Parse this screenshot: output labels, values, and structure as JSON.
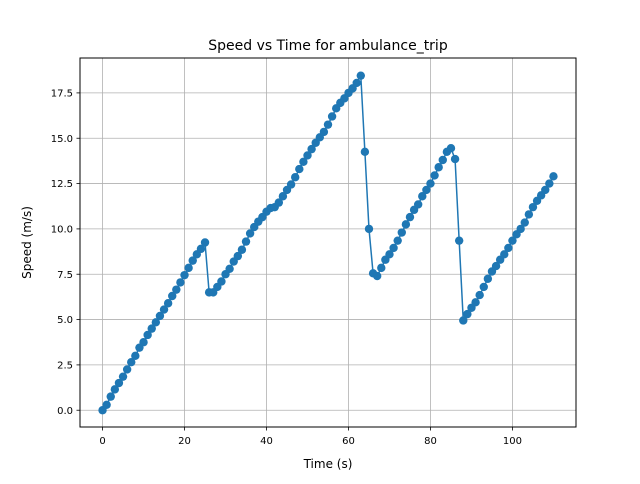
{
  "chart_data": {
    "type": "line",
    "title": "Speed vs Time for ambulance_trip",
    "xlabel": "Time (s)",
    "ylabel": "Speed (m/s)",
    "xlim": [
      -5.5,
      115.5
    ],
    "ylim": [
      -0.925,
      19.425
    ],
    "xticks": [
      0,
      20,
      40,
      60,
      80,
      100
    ],
    "xtick_labels": [
      "0",
      "20",
      "40",
      "60",
      "80",
      "100"
    ],
    "yticks": [
      0,
      2.5,
      5,
      7.5,
      10,
      12.5,
      15,
      17.5
    ],
    "ytick_labels": [
      "0.0",
      "2.5",
      "5.0",
      "7.5",
      "10.0",
      "12.5",
      "15.0",
      "17.5"
    ],
    "grid": true,
    "marker": "circle",
    "color": "#1f77b4",
    "x": [
      0,
      1,
      2,
      3,
      4,
      5,
      6,
      7,
      8,
      9,
      10,
      11,
      12,
      13,
      14,
      15,
      16,
      17,
      18,
      19,
      20,
      21,
      22,
      23,
      24,
      25,
      26,
      27,
      28,
      29,
      30,
      31,
      32,
      33,
      34,
      35,
      36,
      37,
      38,
      39,
      40,
      41,
      42,
      43,
      44,
      45,
      46,
      47,
      48,
      49,
      50,
      51,
      52,
      53,
      54,
      55,
      56,
      57,
      58,
      59,
      60,
      61,
      62,
      63,
      64,
      65,
      66,
      67,
      68,
      69,
      70,
      71,
      72,
      73,
      74,
      75,
      76,
      77,
      78,
      79,
      80,
      81,
      82,
      83,
      84,
      85,
      86,
      87,
      88,
      89,
      90,
      91,
      92,
      93,
      94,
      95,
      96,
      97,
      98,
      99,
      100,
      101,
      102,
      103,
      104,
      105,
      106,
      107,
      108,
      109,
      110
    ],
    "y": [
      0.0,
      0.3,
      0.75,
      1.15,
      1.5,
      1.85,
      2.25,
      2.65,
      3.0,
      3.45,
      3.75,
      4.15,
      4.5,
      4.85,
      5.2,
      5.55,
      5.9,
      6.3,
      6.65,
      7.05,
      7.45,
      7.85,
      8.25,
      8.6,
      8.9,
      9.25,
      6.5,
      6.5,
      6.8,
      7.1,
      7.5,
      7.8,
      8.2,
      8.5,
      8.85,
      9.3,
      9.75,
      10.1,
      10.4,
      10.65,
      10.95,
      11.15,
      11.2,
      11.45,
      11.8,
      12.15,
      12.45,
      12.85,
      13.3,
      13.7,
      14.05,
      14.4,
      14.75,
      15.05,
      15.35,
      15.75,
      16.2,
      16.65,
      16.95,
      17.2,
      17.5,
      17.75,
      18.05,
      18.45,
      14.25,
      10.0,
      7.55,
      7.4,
      7.85,
      8.3,
      8.6,
      8.95,
      9.35,
      9.8,
      10.25,
      10.65,
      11.05,
      11.35,
      11.8,
      12.15,
      12.5,
      12.95,
      13.4,
      13.8,
      14.25,
      14.45,
      13.85,
      9.35,
      4.95,
      5.3,
      5.65,
      5.95,
      6.35,
      6.8,
      7.25,
      7.65,
      7.95,
      8.3,
      8.6,
      8.95,
      9.35,
      9.7,
      10.0,
      10.35,
      10.8,
      11.2,
      11.55,
      11.85,
      12.15,
      12.5,
      12.9
    ]
  }
}
